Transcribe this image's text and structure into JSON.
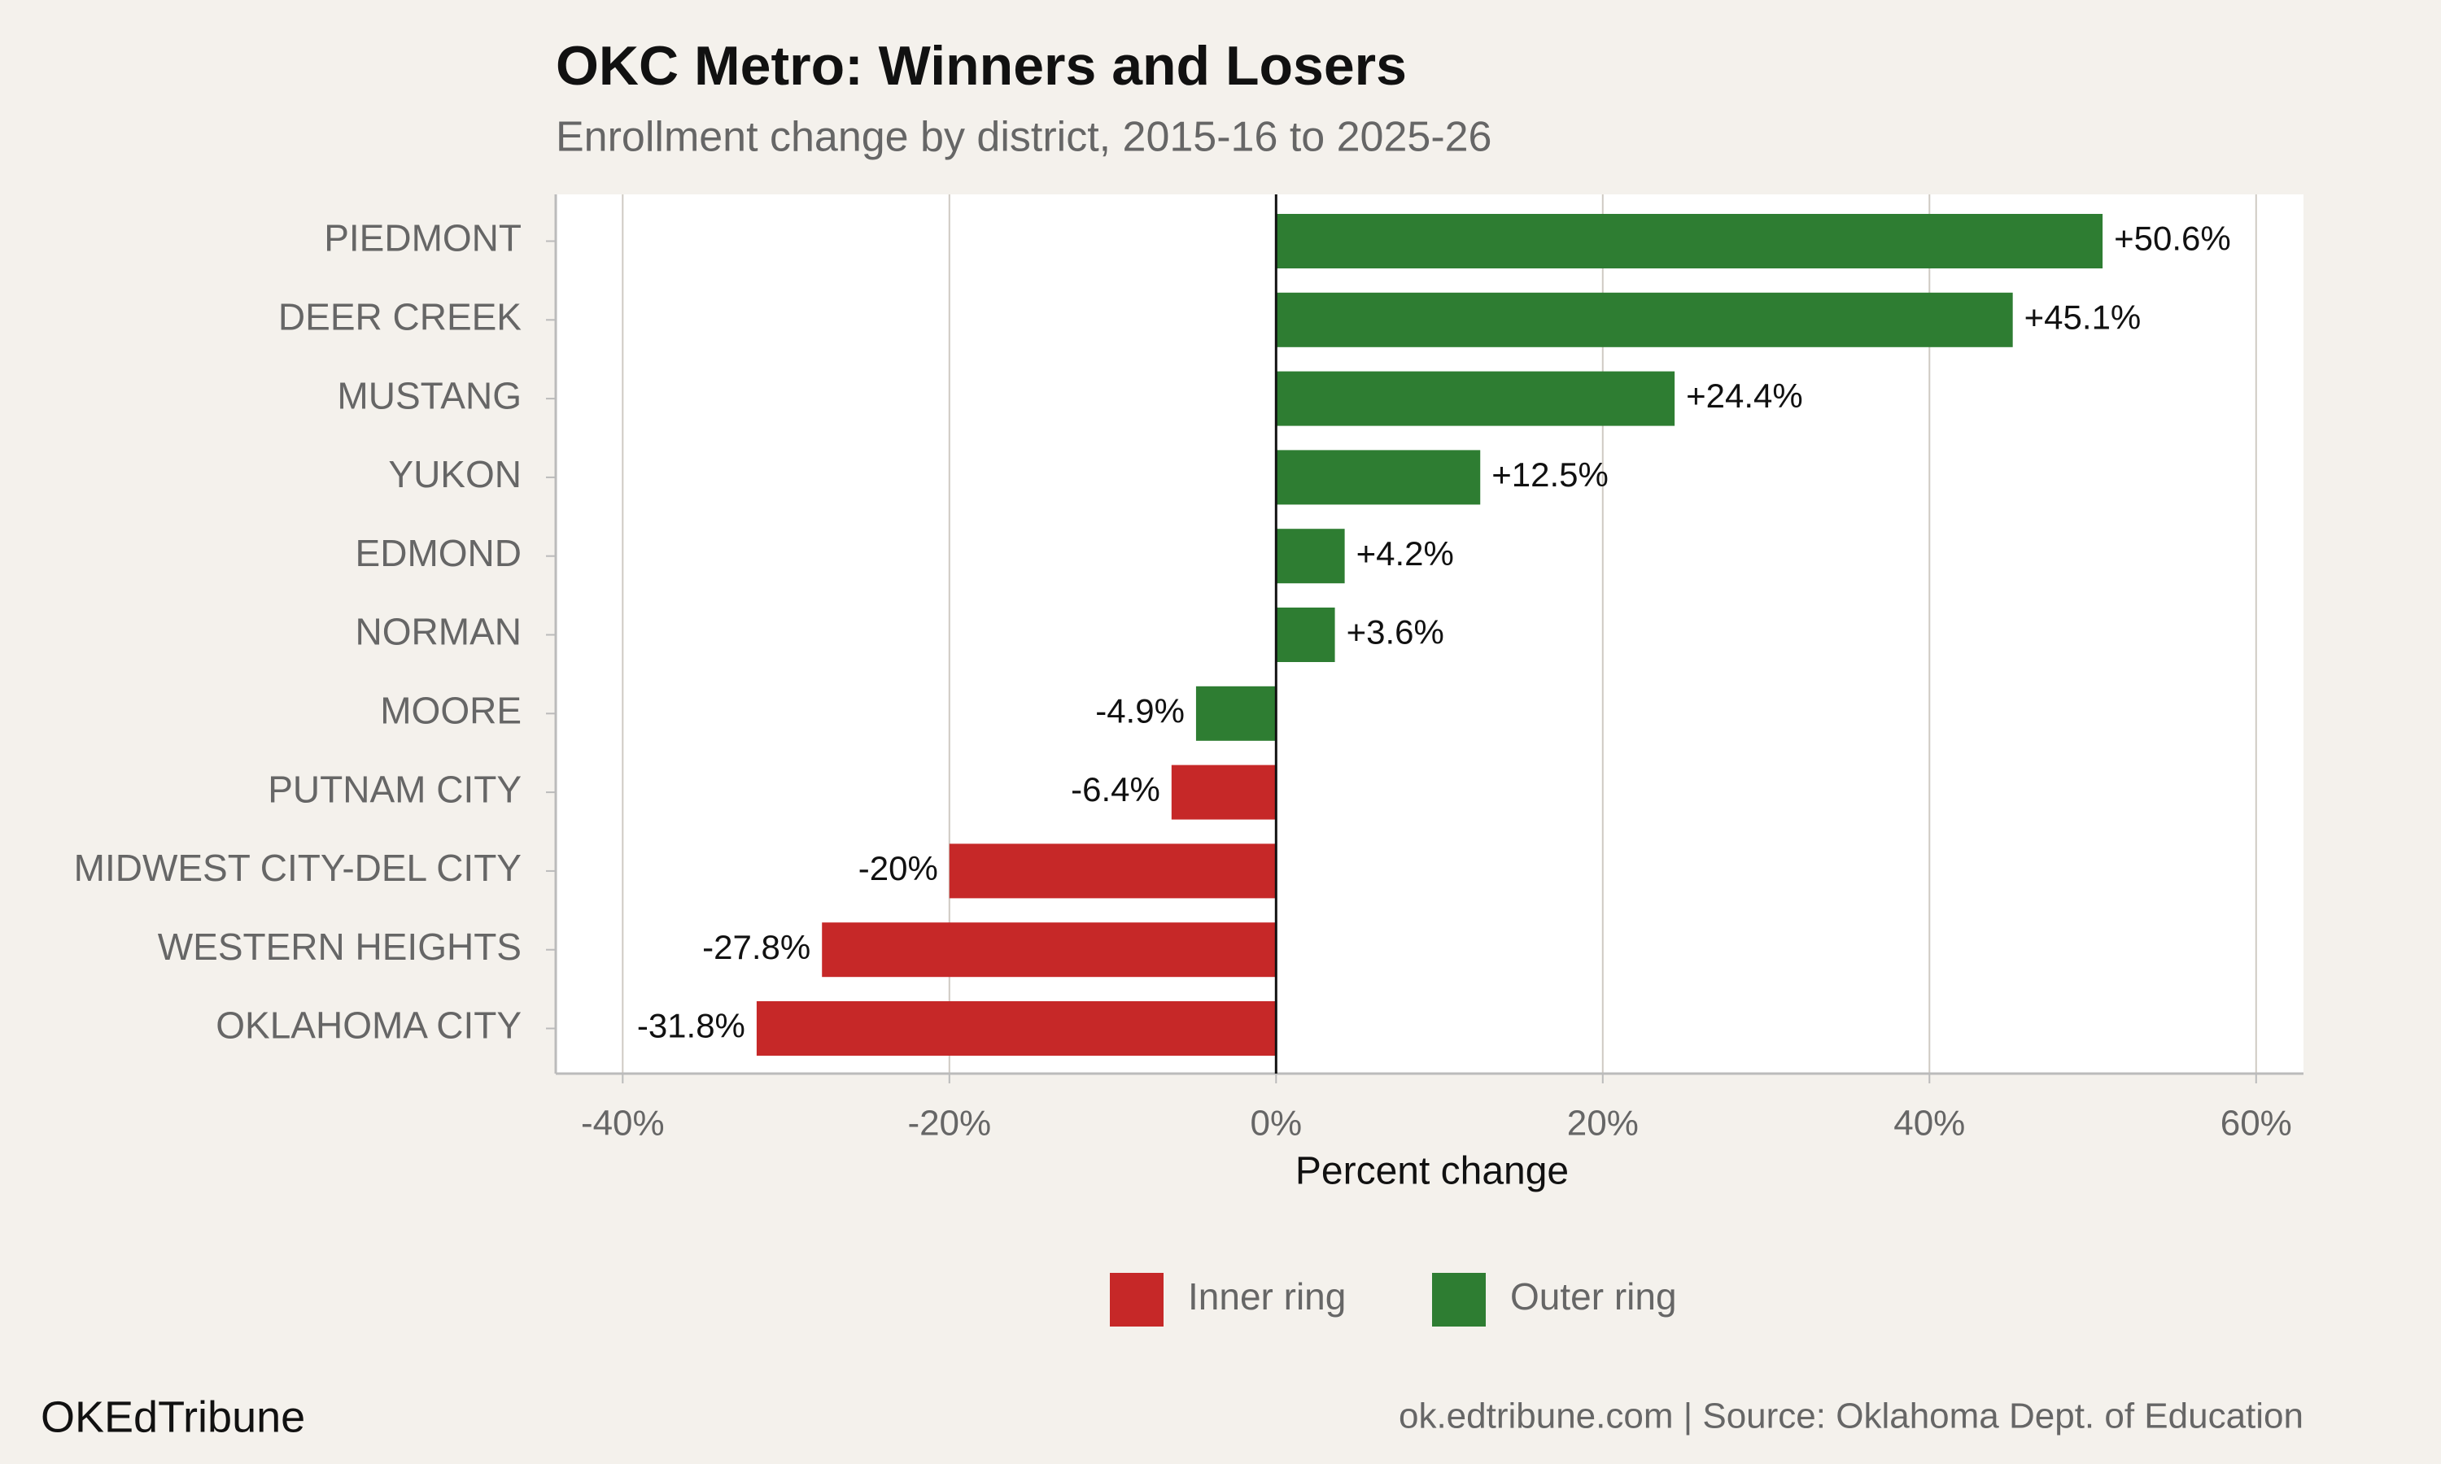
{
  "chart_data": {
    "type": "bar",
    "orientation": "horizontal",
    "title": "OKC Metro: Winners and Losers",
    "subtitle": "Enrollment change by district, 2015-16 to 2025-26",
    "x_label": "Percent change",
    "categories": [
      "PIEDMONT",
      "DEER CREEK",
      "MUSTANG",
      "YUKON",
      "EDMOND",
      "NORMAN",
      "MOORE",
      "PUTNAM CITY",
      "MIDWEST CITY-DEL CITY",
      "WESTERN HEIGHTS",
      "OKLAHOMA CITY"
    ],
    "series": [
      {
        "name": "Inner ring",
        "color": "#c62828",
        "values": [
          null,
          null,
          null,
          null,
          null,
          null,
          null,
          -6.4,
          -20,
          -27.8,
          -31.8
        ],
        "value_labels": [
          null,
          null,
          null,
          null,
          null,
          null,
          null,
          "-6.4%",
          "-20%",
          "-27.8%",
          "-31.8%"
        ]
      },
      {
        "name": "Outer ring",
        "color": "#2e7d32",
        "values": [
          50.6,
          45.1,
          24.4,
          12.5,
          4.2,
          3.6,
          -4.9,
          null,
          null,
          null,
          null
        ],
        "value_labels": [
          "+50.6%",
          "+45.1%",
          "+24.4%",
          "+12.5%",
          "+4.2%",
          "+3.6%",
          "-4.9%",
          null,
          null,
          null,
          null
        ]
      }
    ],
    "xlim": [
      -44.1,
      62.9
    ],
    "xticks": [
      {
        "value": -40,
        "label": "-40%"
      },
      {
        "value": -20,
        "label": "-20%"
      },
      {
        "value": 0,
        "label": "0%"
      },
      {
        "value": 20,
        "label": "20%"
      },
      {
        "value": 40,
        "label": "40%"
      },
      {
        "value": 60,
        "label": "60%"
      }
    ],
    "grid": true,
    "legend": "bottom",
    "footer_left": "OKEdTribune",
    "footer_right": "ok.edtribune.com | Source: Oklahoma Dept. of Education"
  }
}
